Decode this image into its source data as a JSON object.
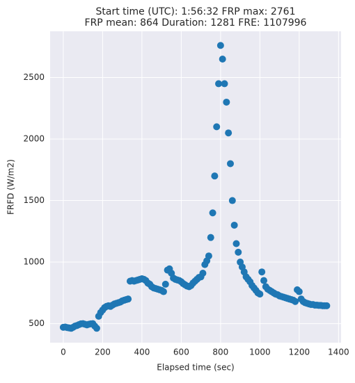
{
  "chart_data": {
    "type": "scatter",
    "title": [
      "Start time (UTC): 1:56:32 FRP max: 2761",
      "FRP mean: 864 Duration: 1281 FRE: 1107996"
    ],
    "x_label": "Elapsed time (sec)",
    "y_label": "FRFD (W/m2)",
    "color": "#1f77b4",
    "grid": true,
    "xlim": [
      -67,
      1413
    ],
    "ylim": [
      345,
      2876
    ],
    "xticks": [
      0,
      200,
      400,
      600,
      800,
      1000,
      1200,
      1400
    ],
    "yticks": [
      500,
      1000,
      1500,
      2000,
      2500
    ],
    "x": [
      0,
      10,
      20,
      30,
      40,
      50,
      60,
      70,
      80,
      90,
      100,
      110,
      120,
      130,
      140,
      150,
      160,
      170,
      180,
      190,
      200,
      210,
      220,
      230,
      240,
      250,
      260,
      270,
      280,
      290,
      300,
      310,
      320,
      330,
      340,
      350,
      360,
      370,
      380,
      390,
      400,
      410,
      420,
      430,
      440,
      450,
      460,
      470,
      480,
      490,
      500,
      510,
      520,
      530,
      540,
      550,
      560,
      570,
      580,
      590,
      600,
      610,
      620,
      630,
      640,
      650,
      660,
      670,
      680,
      690,
      700,
      710,
      720,
      730,
      740,
      750,
      760,
      770,
      780,
      790,
      800,
      810,
      820,
      830,
      840,
      850,
      860,
      870,
      880,
      890,
      900,
      910,
      920,
      930,
      940,
      950,
      960,
      970,
      980,
      990,
      1000,
      1010,
      1020,
      1030,
      1040,
      1050,
      1060,
      1070,
      1080,
      1090,
      1100,
      1110,
      1120,
      1130,
      1140,
      1150,
      1160,
      1170,
      1180,
      1190,
      1200,
      1210,
      1220,
      1230,
      1240,
      1250,
      1260,
      1270,
      1280,
      1290,
      1300,
      1310,
      1320,
      1330,
      1340
    ],
    "values": [
      470,
      472,
      468,
      465,
      462,
      470,
      480,
      485,
      492,
      498,
      500,
      495,
      490,
      495,
      498,
      500,
      480,
      462,
      560,
      590,
      610,
      630,
      640,
      645,
      640,
      650,
      660,
      665,
      670,
      675,
      685,
      690,
      695,
      700,
      845,
      850,
      845,
      850,
      855,
      860,
      865,
      860,
      850,
      830,
      820,
      800,
      790,
      785,
      780,
      775,
      770,
      760,
      820,
      935,
      945,
      910,
      870,
      860,
      855,
      850,
      840,
      825,
      815,
      805,
      800,
      810,
      830,
      845,
      860,
      875,
      880,
      910,
      980,
      1010,
      1050,
      1200,
      1400,
      1700,
      2100,
      2450,
      2761,
      2650,
      2450,
      2300,
      2050,
      1800,
      1500,
      1300,
      1150,
      1080,
      1000,
      960,
      920,
      880,
      860,
      840,
      810,
      790,
      770,
      750,
      740,
      920,
      850,
      800,
      780,
      770,
      760,
      750,
      740,
      735,
      725,
      720,
      715,
      710,
      705,
      700,
      695,
      690,
      680,
      775,
      760,
      700,
      680,
      670,
      665,
      660,
      655,
      655,
      650,
      650,
      648,
      648,
      645,
      645,
      645
    ]
  }
}
